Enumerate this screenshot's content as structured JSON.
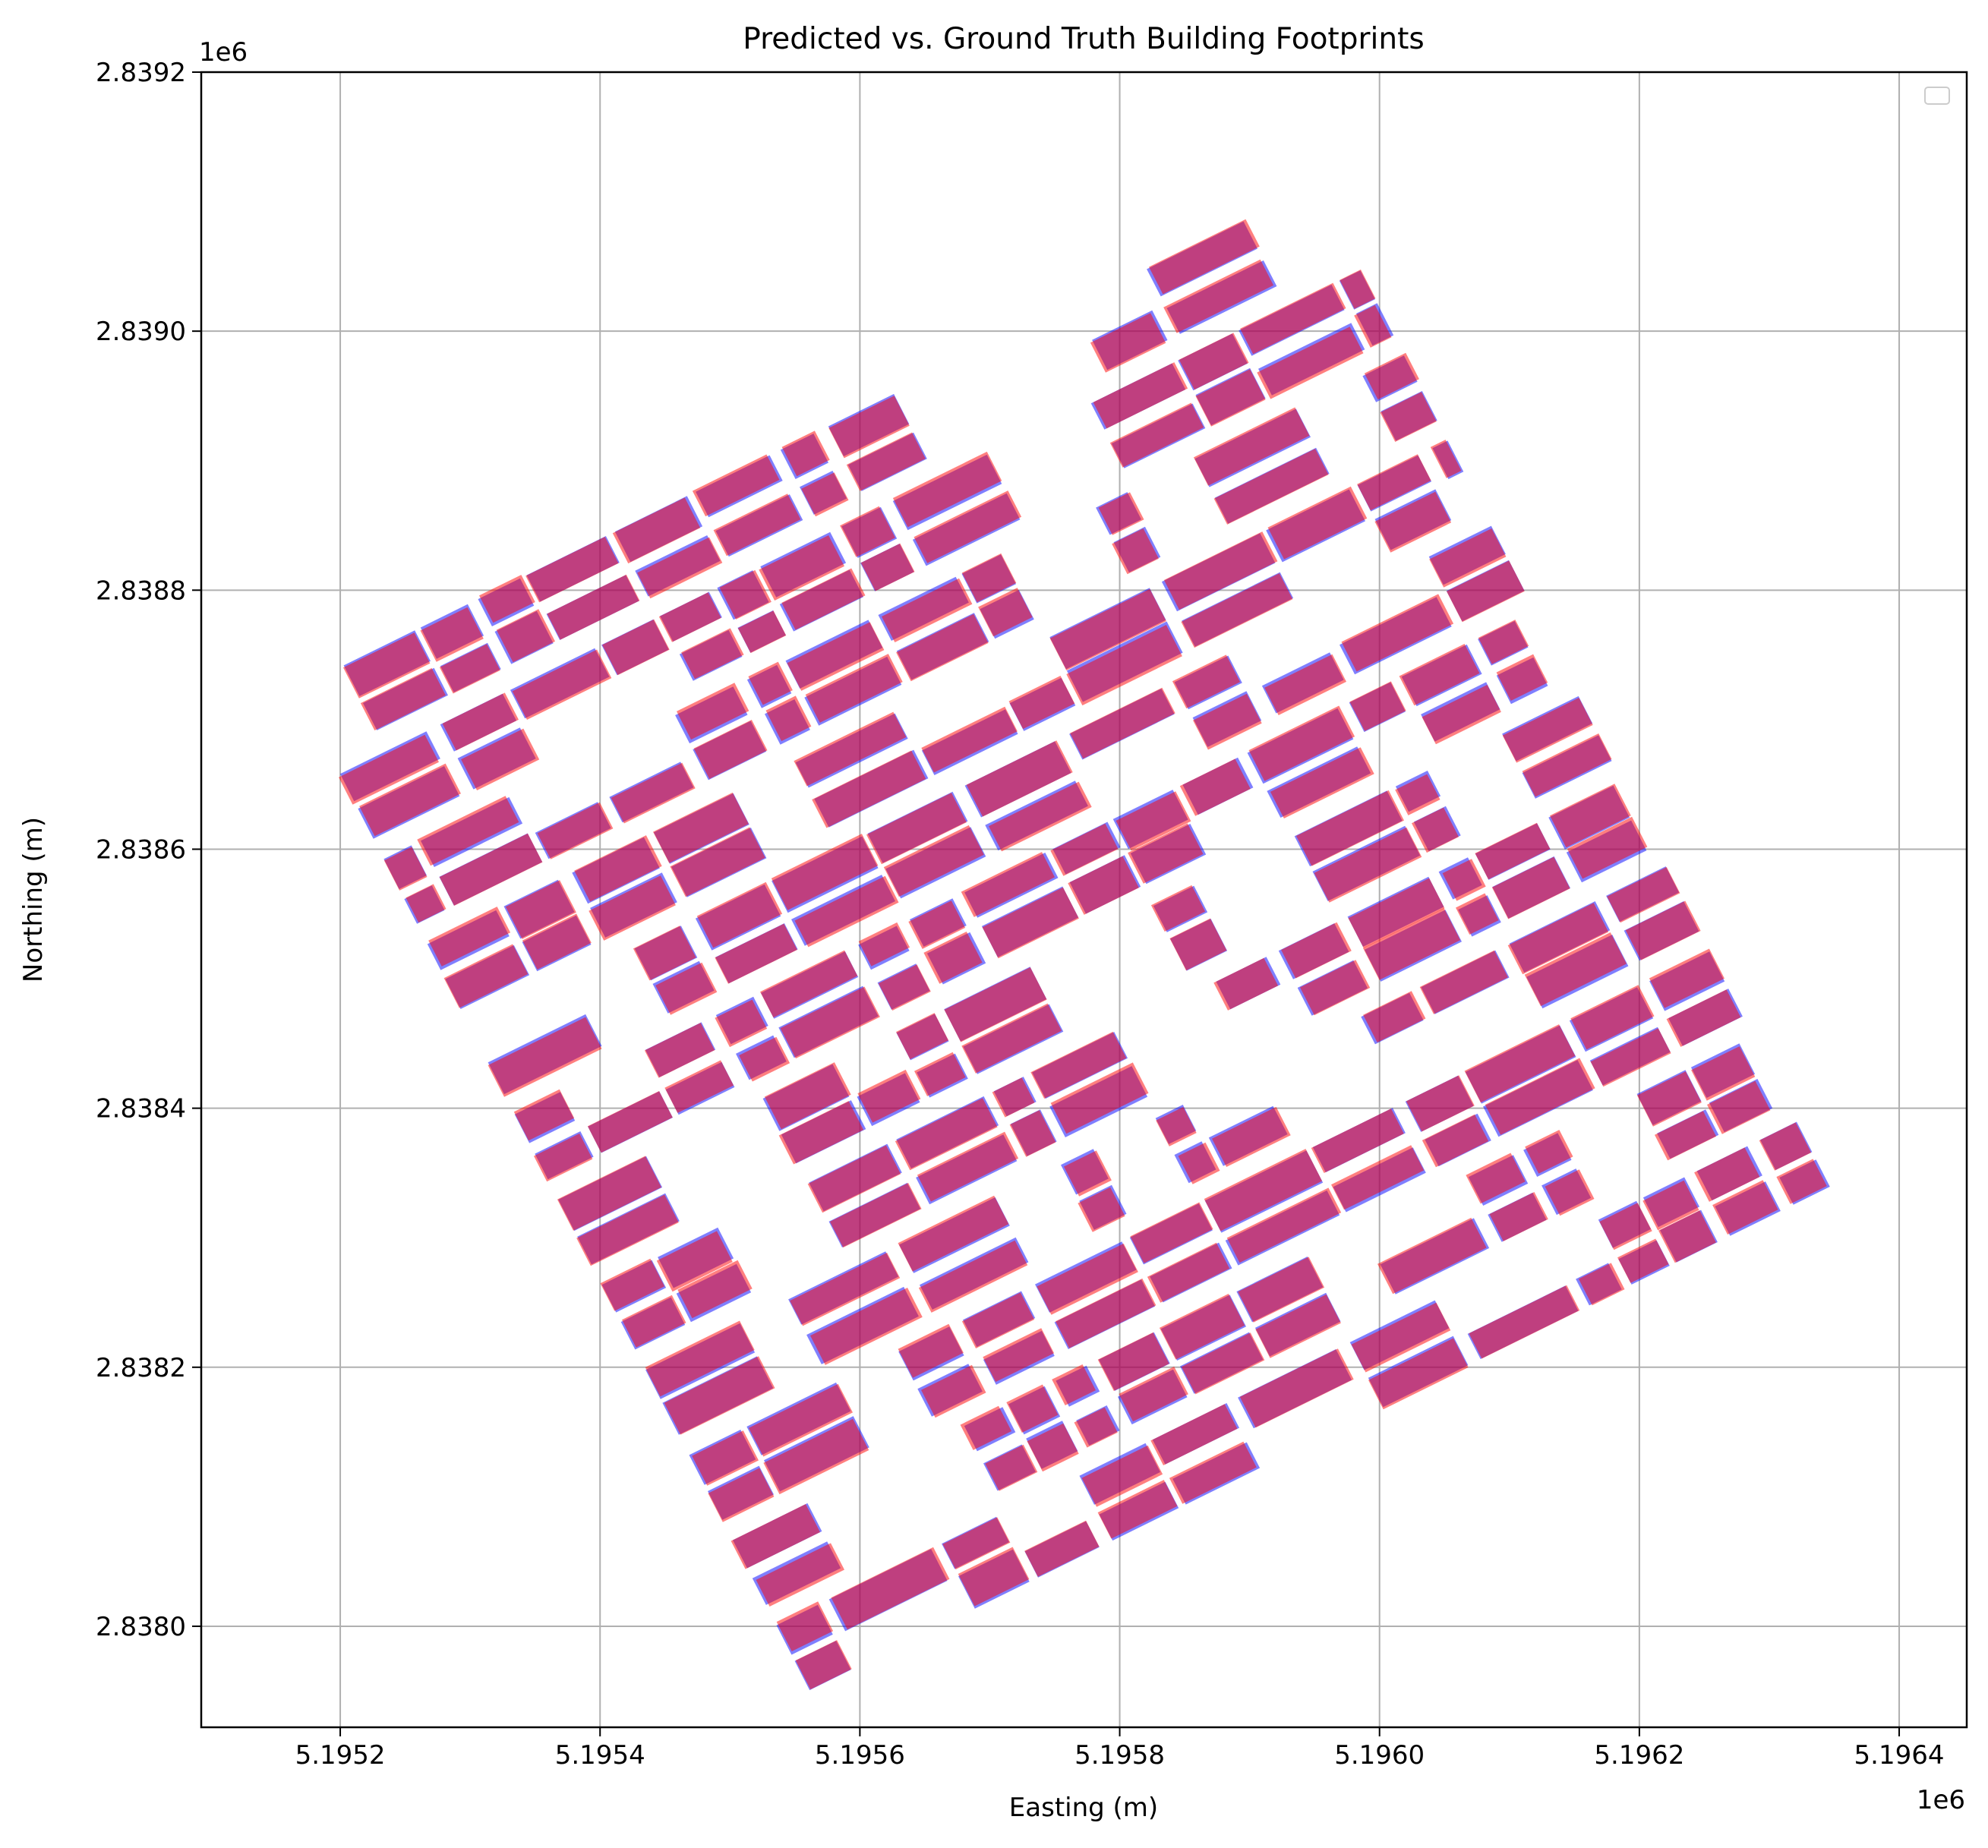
{
  "chart_data": {
    "type": "map",
    "title": "Predicted vs. Ground Truth Building Footprints",
    "xlabel": "Easting (m)",
    "ylabel": "Northing (m)",
    "x_offset_label": "1e6",
    "y_offset_label": "1e6",
    "xlim": [
      5195093,
      5196452
    ],
    "ylim": [
      2837922,
      2839200
    ],
    "x_ticks": [
      5195200,
      5195400,
      5195600,
      5195800,
      5196000,
      5196200,
      5196400
    ],
    "x_tick_labels": [
      "5.1952",
      "5.1954",
      "5.1956",
      "5.1958",
      "5.1960",
      "5.1962",
      "5.1964"
    ],
    "y_ticks": [
      2838000,
      2838200,
      2838400,
      2838600,
      2838800,
      2839000,
      2839200
    ],
    "y_tick_labels": [
      "2.8380",
      "2.8382",
      "2.8384",
      "2.8386",
      "2.8388",
      "2.8390",
      "2.8392"
    ],
    "grid": true,
    "legend": {
      "position": "upper-right",
      "entries": []
    },
    "series": [
      {
        "role": "predicted",
        "color": "#0000ff",
        "alpha": 0.5
      },
      {
        "role": "ground-truth",
        "color": "#ff0000",
        "alpha": 0.5
      }
    ],
    "footprint_area": {
      "corners": [
        [
          5195160,
          2838726
        ],
        [
          5195960,
          2839122
        ],
        [
          5196360,
          2838336
        ],
        [
          5195560,
          2837943
        ]
      ]
    }
  }
}
